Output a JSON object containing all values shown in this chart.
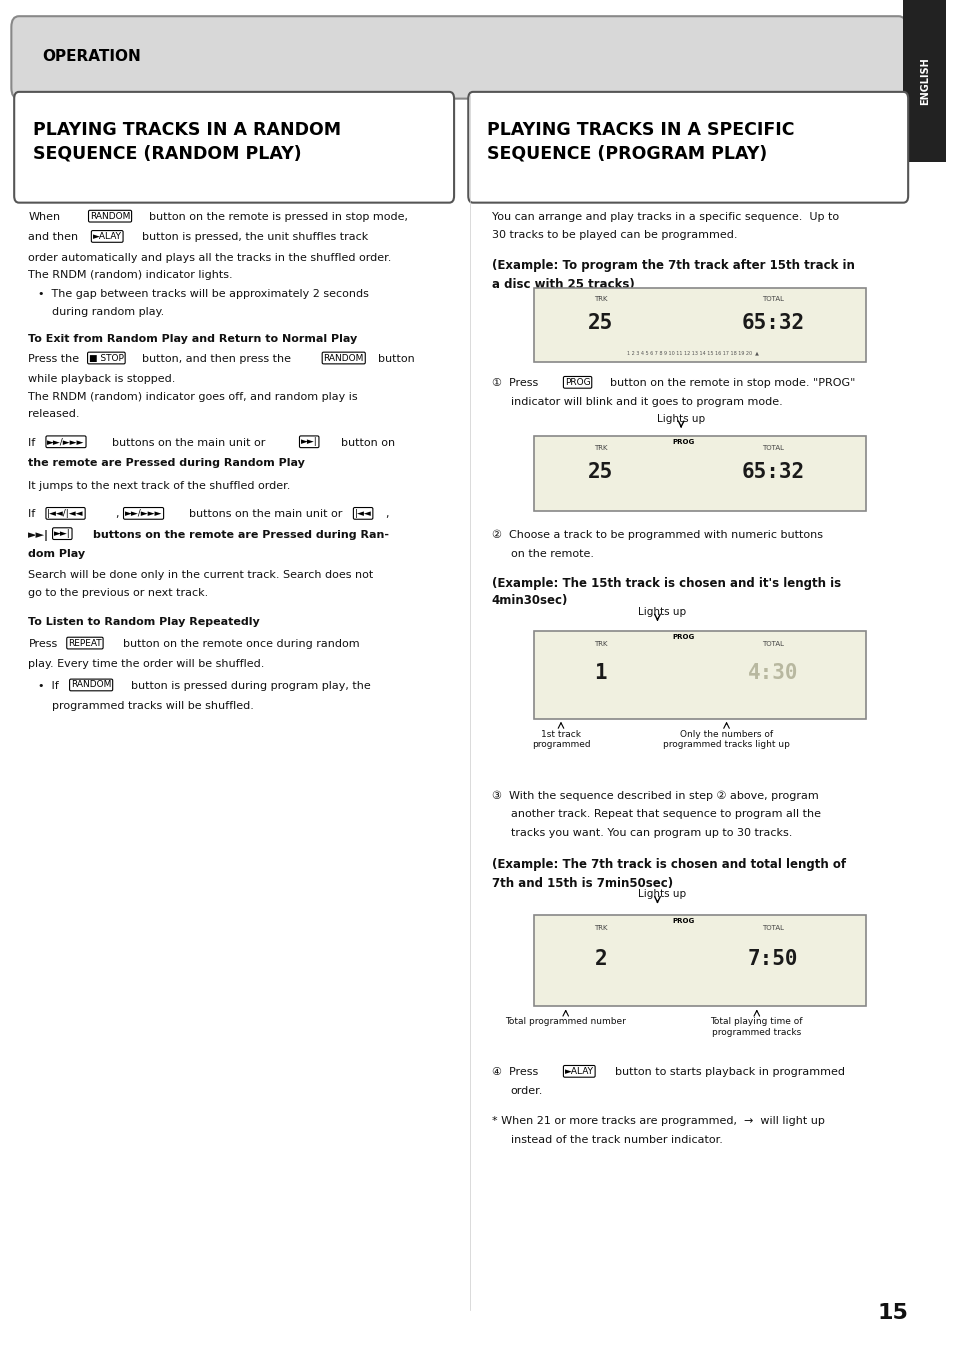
{
  "page_bg": "#ffffff",
  "header_bg": "#d8d8d8",
  "header_text": "OPERATION",
  "english_tab_bg": "#222222",
  "english_tab_text": "ENGLISH",
  "left_title": "PLAYING TRACKS IN A RANDOM\nSEQUENCE (RANDOM PLAY)",
  "right_title": "PLAYING TRACKS IN A SPECIFIC\nSEQUENCE (PROGRAM PLAY)",
  "page_number": "15"
}
